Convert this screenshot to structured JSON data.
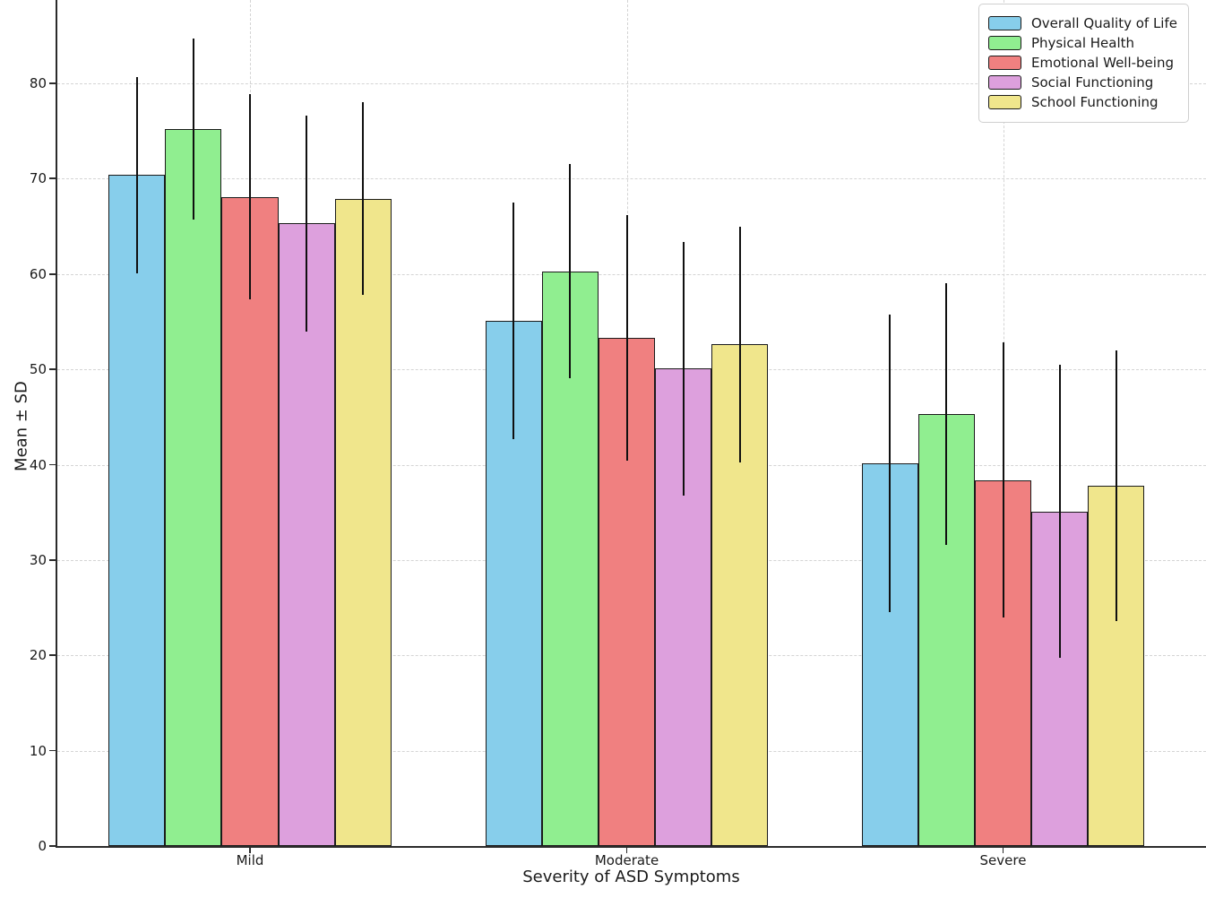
{
  "chart_data": {
    "type": "bar",
    "title": "",
    "xlabel": "Severity of ASD Symptoms",
    "ylabel": "Mean ± SD",
    "categories": [
      "Mild",
      "Moderate",
      "Severe"
    ],
    "series": [
      {
        "name": "Overall Quality of Life",
        "color": "#87CEEB",
        "means": [
          70.4,
          55.1,
          40.1
        ],
        "sds": [
          10.3,
          12.4,
          15.6
        ]
      },
      {
        "name": "Physical Health",
        "color": "#90EE90",
        "means": [
          75.2,
          60.3,
          45.3
        ],
        "sds": [
          9.5,
          11.2,
          13.7
        ]
      },
      {
        "name": "Emotional Well-being",
        "color": "#F08080",
        "means": [
          68.1,
          53.3,
          38.4
        ],
        "sds": [
          10.8,
          12.9,
          14.4
        ]
      },
      {
        "name": "Social Functioning",
        "color": "#DDA0DD",
        "means": [
          65.3,
          50.1,
          35.1
        ],
        "sds": [
          11.3,
          13.3,
          15.4
        ]
      },
      {
        "name": "School Functioning",
        "color": "#F0E68C",
        "means": [
          67.9,
          52.6,
          37.8
        ],
        "sds": [
          10.1,
          12.4,
          14.2
        ]
      }
    ],
    "y_ticks": [
      0,
      10,
      20,
      30,
      40,
      50,
      60,
      70,
      80
    ],
    "ylim": [
      0,
      88.7
    ],
    "grid": true,
    "error_bars": true,
    "legend_position": "upper right",
    "edge_color": "#1b1b1b",
    "grid_color": "#d4d4d4"
  }
}
